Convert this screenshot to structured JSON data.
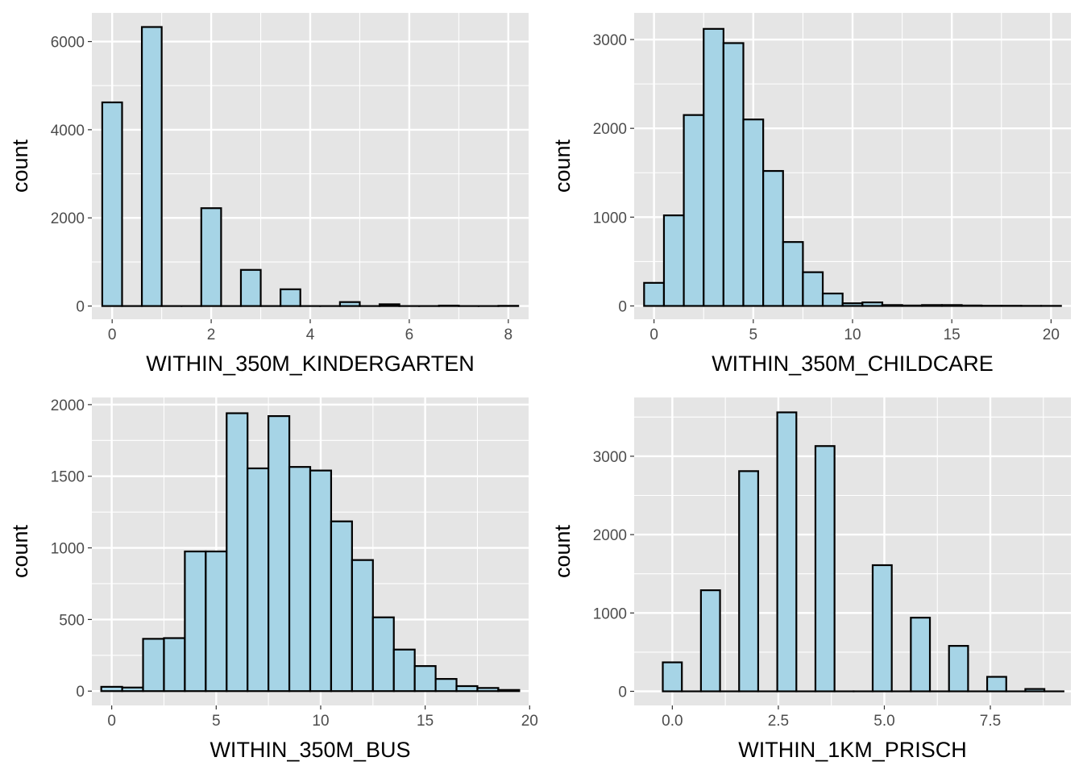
{
  "style": {
    "panel_background": "#e5e5e5",
    "bar_fill": "#a6d4e6",
    "bar_outline": "#000000",
    "grid_color": "#ffffff"
  },
  "chart_data": [
    {
      "type": "bar",
      "xlabel": "WITHIN_350M_KINDERGARTEN",
      "ylabel": "count",
      "xlim": [
        -0.41,
        8.41
      ],
      "ylim": [
        -300,
        6650
      ],
      "xticks": [
        0,
        2,
        4,
        6,
        8
      ],
      "xtick_labels": [
        "0",
        "2",
        "4",
        "6",
        "8"
      ],
      "yticks": [
        0,
        2000,
        4000,
        6000
      ],
      "ytick_labels": [
        "0",
        "2000",
        "4000",
        "6000"
      ],
      "bin_width": 0.4,
      "bin_centers": [
        0.0,
        0.4,
        0.8,
        1.2,
        1.6,
        2.0,
        2.4,
        2.8,
        3.2,
        3.6,
        4.0,
        4.4,
        4.8,
        5.2,
        5.6,
        6.0,
        6.4,
        6.8,
        7.2,
        7.6,
        8.0
      ],
      "values": [
        4620,
        0,
        6330,
        0,
        0,
        2220,
        0,
        820,
        0,
        380,
        0,
        0,
        90,
        0,
        40,
        0,
        0,
        10,
        0,
        0,
        5
      ]
    },
    {
      "type": "bar",
      "xlabel": "WITHIN_350M_CHILDCARE",
      "ylabel": "count",
      "xlim": [
        -1.0,
        21.0
      ],
      "ylim": [
        -150,
        3300
      ],
      "xticks": [
        0,
        5,
        10,
        15,
        20
      ],
      "xtick_labels": [
        "0",
        "5",
        "10",
        "15",
        "20"
      ],
      "yticks": [
        0,
        1000,
        2000,
        3000
      ],
      "ytick_labels": [
        "0",
        "1000",
        "2000",
        "3000"
      ],
      "bin_width": 1,
      "bin_centers": [
        0,
        1,
        2,
        3,
        4,
        5,
        6,
        7,
        8,
        9,
        10,
        11,
        12,
        13,
        14,
        15,
        16,
        17,
        18,
        19,
        20
      ],
      "values": [
        260,
        1020,
        2150,
        3120,
        2960,
        2100,
        1520,
        720,
        380,
        140,
        30,
        40,
        10,
        5,
        10,
        10,
        5,
        2,
        2,
        1,
        1
      ]
    },
    {
      "type": "bar",
      "xlabel": "WITHIN_350M_BUS",
      "ylabel": "count",
      "xlim": [
        -0.95,
        19.95
      ],
      "ylim": [
        -100,
        2050
      ],
      "xticks": [
        0,
        5,
        10,
        15,
        20
      ],
      "xtick_labels": [
        "0",
        "5",
        "10",
        "15",
        "20"
      ],
      "yticks": [
        0,
        500,
        1000,
        1500,
        2000
      ],
      "ytick_labels": [
        "0",
        "500",
        "1000",
        "1500",
        "2000"
      ],
      "bin_width": 1,
      "bin_centers": [
        0,
        1,
        2,
        3,
        4,
        5,
        6,
        7,
        8,
        9,
        10,
        11,
        12,
        13,
        14,
        15,
        16,
        17,
        18,
        19
      ],
      "values": [
        30,
        25,
        365,
        370,
        975,
        975,
        1940,
        1555,
        1920,
        1565,
        1540,
        1185,
        915,
        515,
        290,
        175,
        85,
        35,
        22,
        8
      ]
    },
    {
      "type": "bar",
      "xlabel": "WITHIN_1KM_PRISCH",
      "ylabel": "count",
      "xlim": [
        -0.9,
        9.4
      ],
      "ylim": [
        -180,
        3750
      ],
      "xticks": [
        0,
        2.5,
        5,
        7.5
      ],
      "xtick_labels": [
        "0.0",
        "2.5",
        "5.0",
        "7.5"
      ],
      "yticks": [
        0,
        1000,
        2000,
        3000
      ],
      "ytick_labels": [
        "0",
        "1000",
        "2000",
        "3000"
      ],
      "bin_width": 0.45,
      "bin_centers": [
        0.0,
        0.45,
        0.9,
        1.35,
        1.8,
        2.25,
        2.7,
        3.15,
        3.6,
        4.05,
        4.5,
        4.95,
        5.4,
        5.85,
        6.3,
        6.75,
        7.2,
        7.65,
        8.1,
        8.55,
        9.0
      ],
      "values": [
        370,
        0,
        1290,
        0,
        2810,
        0,
        3560,
        0,
        3130,
        0,
        0,
        1610,
        0,
        940,
        0,
        580,
        0,
        185,
        0,
        30,
        0
      ]
    }
  ]
}
